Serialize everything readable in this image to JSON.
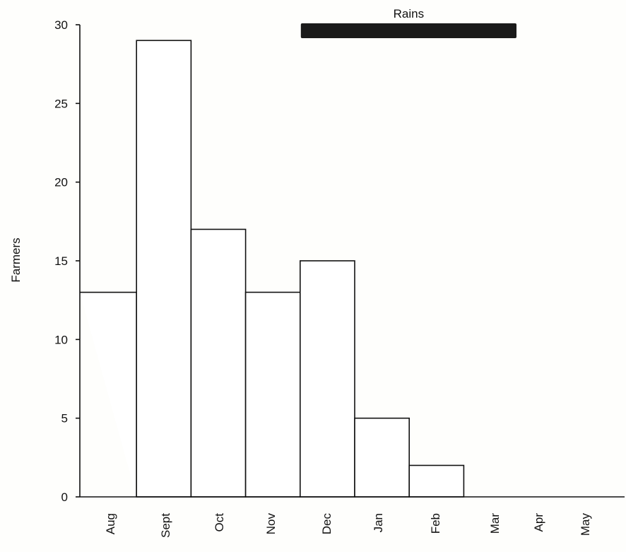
{
  "chart_data": {
    "type": "bar",
    "title": "",
    "xlabel": "",
    "ylabel": "Farmers",
    "ylim": [
      0,
      30
    ],
    "yticks": [
      0,
      5,
      10,
      15,
      20,
      25,
      30
    ],
    "categories": [
      "Aug",
      "Sept",
      "Oct",
      "Nov",
      "Dec",
      "Jan",
      "Feb",
      "Mar",
      "Apr",
      "May"
    ],
    "values": [
      13,
      29,
      17,
      13,
      15,
      5,
      2,
      0,
      0,
      0
    ],
    "grid": false,
    "annotations": [
      {
        "label": "Rains",
        "from": "Dec",
        "to": "Mar"
      }
    ],
    "colors": {
      "bar_fill": "#ffffff",
      "bar_stroke": "#111111",
      "rains_bar": "#1a1a1a"
    }
  }
}
